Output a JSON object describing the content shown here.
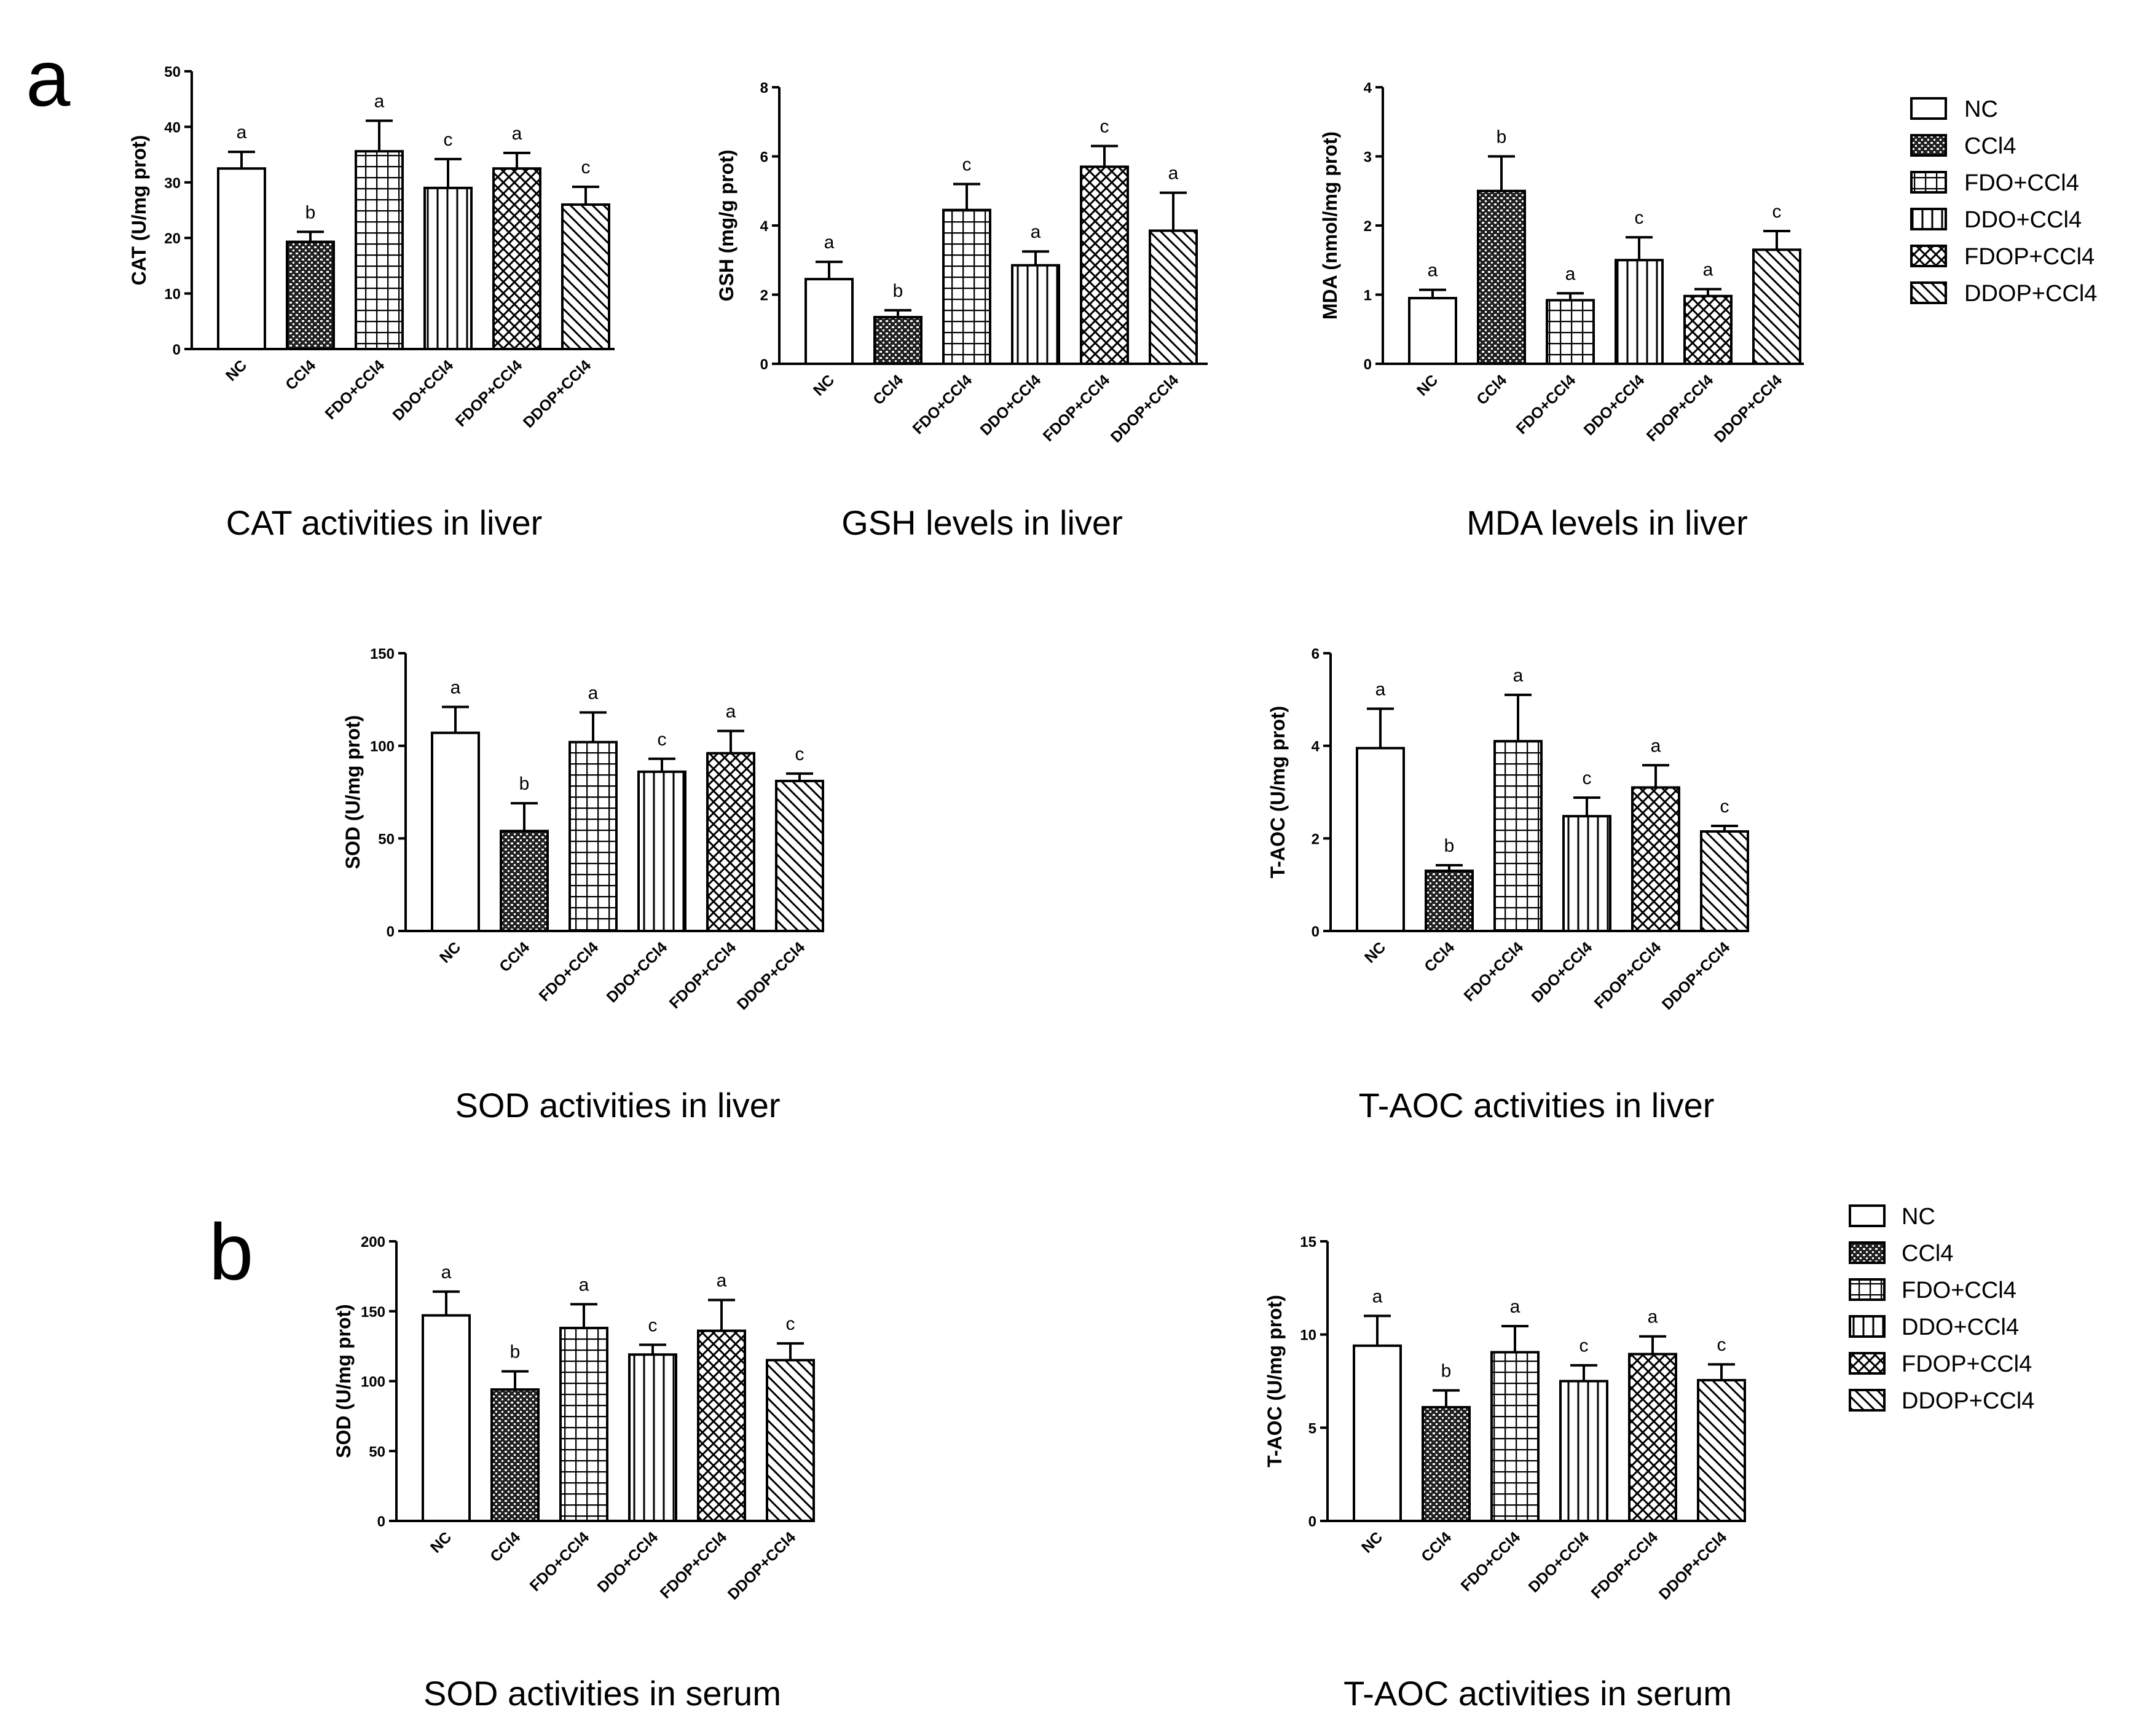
{
  "panels": [
    {
      "letter": "a"
    },
    {
      "letter": "b"
    }
  ],
  "legend_entries": [
    "NC",
    "CCl4",
    "FDO+CCl4",
    "DDO+CCl4",
    "FDOP+CCl4",
    "DDOP+CCl4"
  ],
  "chart_data": [
    {
      "type": "bar",
      "panel": "a",
      "title": "CAT activities in liver",
      "ylabel": "CAT (U/mg prot)",
      "xlabel": "",
      "categories": [
        "NC",
        "CCl4",
        "FDO+CCl4",
        "DDO+CCl4",
        "FDOP+CCl4",
        "DDOP+CCl4"
      ],
      "values": [
        32.5,
        19.3,
        35.6,
        29.0,
        32.5,
        26.0
      ],
      "errors": [
        3.0,
        1.8,
        5.5,
        5.2,
        2.8,
        3.2
      ],
      "significance": [
        "a",
        "b",
        "a",
        "c",
        "a",
        "c"
      ],
      "ylim": [
        0,
        50
      ],
      "yticks": [
        0,
        10,
        20,
        30,
        40,
        50
      ],
      "ytick_labels": [
        "0",
        "10",
        "20",
        "30",
        "40",
        "50"
      ]
    },
    {
      "type": "bar",
      "panel": "a",
      "title": "GSH levels in liver",
      "ylabel": "GSH (mg/g prot)",
      "xlabel": "",
      "categories": [
        "NC",
        "CCl4",
        "FDO+CCl4",
        "DDO+CCl4",
        "FDOP+CCl4",
        "DDOP+CCl4"
      ],
      "values": [
        2.45,
        1.35,
        4.45,
        2.85,
        5.7,
        3.85
      ],
      "errors": [
        0.5,
        0.2,
        0.75,
        0.4,
        0.6,
        1.1
      ],
      "significance": [
        "a",
        "b",
        "c",
        "a",
        "c",
        "a"
      ],
      "ylim": [
        0,
        8
      ],
      "yticks": [
        0,
        2,
        4,
        6,
        8
      ],
      "ytick_labels": [
        "0",
        "2",
        "4",
        "6",
        "8"
      ]
    },
    {
      "type": "bar",
      "panel": "a",
      "title": "MDA levels in liver",
      "ylabel": "MDA (nmol/mg prot)",
      "xlabel": "",
      "categories": [
        "NC",
        "CCl4",
        "FDO+CCl4",
        "DDO+CCl4",
        "FDOP+CCl4",
        "DDOP+CCl4"
      ],
      "values": [
        0.95,
        2.5,
        0.92,
        1.5,
        0.98,
        1.65
      ],
      "errors": [
        0.12,
        0.5,
        0.1,
        0.33,
        0.1,
        0.27
      ],
      "significance": [
        "a",
        "b",
        "a",
        "c",
        "a",
        "c"
      ],
      "ylim": [
        0,
        4
      ],
      "yticks": [
        0,
        1,
        2,
        3,
        4
      ],
      "ytick_labels": [
        "0",
        "1",
        "2",
        "3",
        "4"
      ]
    },
    {
      "type": "bar",
      "panel": "a",
      "title": "SOD activities in liver",
      "ylabel": "SOD (U/mg prot)",
      "xlabel": "",
      "categories": [
        "NC",
        "CCl4",
        "FDO+CCl4",
        "DDO+CCl4",
        "FDOP+CCl4",
        "DDOP+CCl4"
      ],
      "values": [
        107,
        54,
        102,
        86,
        96,
        81
      ],
      "errors": [
        14,
        15,
        16,
        7,
        12,
        4
      ],
      "significance": [
        "a",
        "b",
        "a",
        "c",
        "a",
        "c"
      ],
      "ylim": [
        0,
        150
      ],
      "yticks": [
        0,
        50,
        100,
        150
      ],
      "ytick_labels": [
        "0",
        "50",
        "100",
        "150"
      ]
    },
    {
      "type": "bar",
      "panel": "a",
      "title": "T-AOC activities in liver",
      "ylabel": "T-AOC (U/mg prot)",
      "xlabel": "",
      "categories": [
        "NC",
        "CCl4",
        "FDO+CCl4",
        "DDO+CCl4",
        "FDOP+CCl4",
        "DDOP+CCl4"
      ],
      "values": [
        3.95,
        1.3,
        4.1,
        2.48,
        3.1,
        2.15
      ],
      "errors": [
        0.85,
        0.12,
        1.0,
        0.4,
        0.48,
        0.12
      ],
      "significance": [
        "a",
        "b",
        "a",
        "c",
        "a",
        "c"
      ],
      "ylim": [
        0,
        6
      ],
      "yticks": [
        0,
        2,
        4,
        6
      ],
      "ytick_labels": [
        "0",
        "2",
        "4",
        "6"
      ]
    },
    {
      "type": "bar",
      "panel": "b",
      "title": "SOD activities in serum",
      "ylabel": "SOD (U/mg prot)",
      "xlabel": "",
      "categories": [
        "NC",
        "CCl4",
        "FDO+CCl4",
        "DDO+CCl4",
        "FDOP+CCl4",
        "DDOP+CCl4"
      ],
      "values": [
        147,
        94,
        138,
        119,
        136,
        115
      ],
      "errors": [
        17,
        13,
        17,
        7,
        22,
        12
      ],
      "significance": [
        "a",
        "b",
        "a",
        "c",
        "a",
        "c"
      ],
      "ylim": [
        0,
        200
      ],
      "yticks": [
        0,
        50,
        100,
        150,
        200
      ],
      "ytick_labels": [
        "0",
        "50",
        "100",
        "150",
        "200"
      ]
    },
    {
      "type": "bar",
      "panel": "b",
      "title": "T-AOC activities in serum",
      "ylabel": "T-AOC (U/mg prot)",
      "xlabel": "",
      "categories": [
        "NC",
        "CCl4",
        "FDO+CCl4",
        "DDO+CCl4",
        "FDOP+CCl4",
        "DDOP+CCl4"
      ],
      "values": [
        9.4,
        6.1,
        9.05,
        7.5,
        8.95,
        7.55
      ],
      "errors": [
        1.6,
        0.9,
        1.4,
        0.85,
        0.95,
        0.85
      ],
      "significance": [
        "a",
        "b",
        "a",
        "c",
        "a",
        "c"
      ],
      "ylim": [
        0,
        15
      ],
      "yticks": [
        0,
        5,
        10,
        15
      ],
      "ytick_labels": [
        "0",
        "5",
        "10",
        "15"
      ]
    }
  ]
}
